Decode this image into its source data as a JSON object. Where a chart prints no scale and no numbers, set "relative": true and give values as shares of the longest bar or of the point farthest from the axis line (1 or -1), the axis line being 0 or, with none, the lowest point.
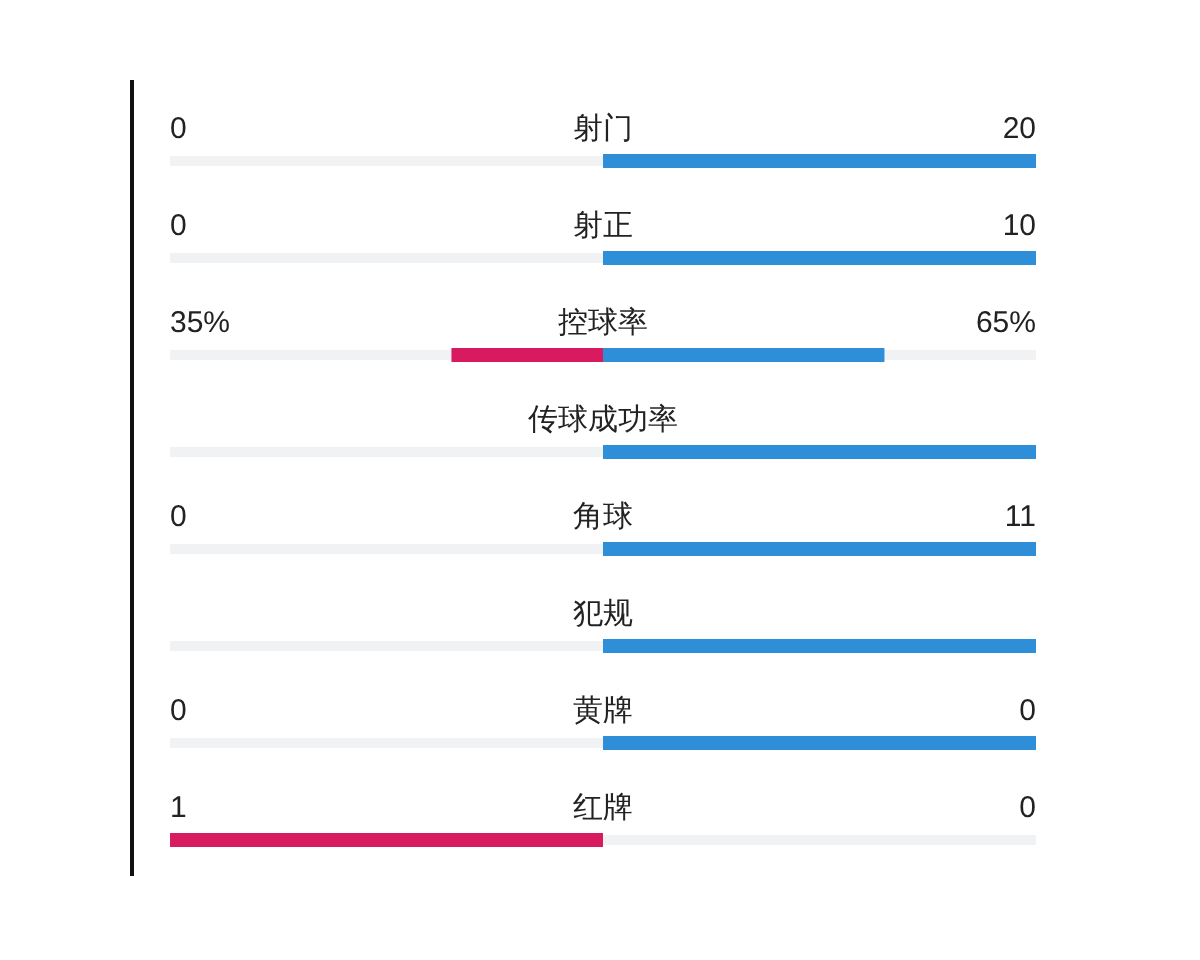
{
  "chart_data": {
    "type": "bar",
    "orientation": "horizontal",
    "relative": true,
    "categories": [
      "射门",
      "射正",
      "控球率",
      "传球成功率",
      "角球",
      "犯规",
      "黄牌",
      "红牌"
    ],
    "series": [
      {
        "color": "#d81b60",
        "values": [
          0,
          0,
          -0.35,
          0,
          0,
          0,
          0,
          -1
        ]
      },
      {
        "color": "#2e8fd8",
        "values": [
          1,
          1,
          0.65,
          1,
          1,
          1,
          1,
          0
        ]
      }
    ],
    "annotations": [
      "0",
      "20",
      "0",
      "10",
      "35%",
      "65%",
      "0",
      "11",
      "0",
      "0",
      "1",
      "0"
    ]
  }
}
